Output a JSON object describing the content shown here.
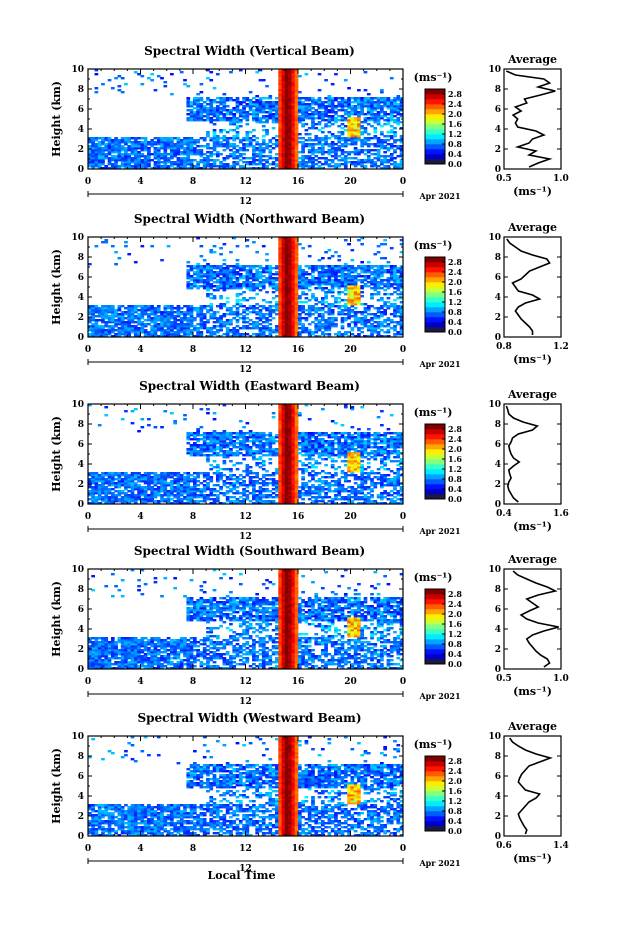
{
  "figure": {
    "date_label": "Apr 2021",
    "xaxis_title": "Local Time",
    "day_label": "12",
    "height_label": "Height (km)",
    "cbar_unit": "(ms⁻¹)",
    "avg_title": "Average",
    "avg_unit": "(ms⁻¹)"
  },
  "chart_data": [
    {
      "type": "heatmap",
      "title": "Spectral Width (Vertical Beam)",
      "ylabel": "Height (km)",
      "xlabel": "Local Time",
      "x_ticks": [
        "0",
        "4",
        "8",
        "12",
        "16",
        "20",
        "0"
      ],
      "y_ticks": [
        "0",
        "2",
        "4",
        "6",
        "8",
        "10"
      ],
      "xlim": [
        0,
        24
      ],
      "ylim": [
        0,
        10
      ],
      "colorbar": {
        "label": "(ms⁻¹)",
        "ticks": [
          "0.0",
          "0.4",
          "0.8",
          "1.2",
          "1.6",
          "2.0",
          "2.4",
          "2.8"
        ],
        "range": [
          0,
          3.0
        ]
      },
      "average": {
        "title": "Average",
        "xlabel": "(ms⁻¹)",
        "x_ticks": [
          "0.5",
          "1.0"
        ],
        "xlim": [
          0.5,
          1.0
        ],
        "heights": [
          0.2,
          0.6,
          1.0,
          1.4,
          1.8,
          2.2,
          2.6,
          3.0,
          3.4,
          3.8,
          4.2,
          4.6,
          5.0,
          5.4,
          5.8,
          6.2,
          6.6,
          7.0,
          7.4,
          7.8,
          8.2,
          8.6,
          9.0,
          9.4,
          9.8
        ],
        "values": [
          0.72,
          0.8,
          0.9,
          0.72,
          0.78,
          0.62,
          0.72,
          0.75,
          0.85,
          0.78,
          0.62,
          0.6,
          0.62,
          0.58,
          0.65,
          0.6,
          0.7,
          0.68,
          0.82,
          0.95,
          0.8,
          0.9,
          0.85,
          0.6,
          0.52
        ]
      }
    },
    {
      "type": "heatmap",
      "title": "Spectral Width (Northward Beam)",
      "ylabel": "Height (km)",
      "xlabel": "Local Time",
      "x_ticks": [
        "0",
        "4",
        "8",
        "12",
        "16",
        "20",
        "0"
      ],
      "y_ticks": [
        "0",
        "2",
        "4",
        "6",
        "8",
        "10"
      ],
      "xlim": [
        0,
        24
      ],
      "ylim": [
        0,
        10
      ],
      "colorbar": {
        "label": "(ms⁻¹)",
        "ticks": [
          "0.0",
          "0.4",
          "0.8",
          "1.2",
          "1.6",
          "2.0",
          "2.4",
          "2.8"
        ],
        "range": [
          0,
          3.0
        ]
      },
      "average": {
        "title": "Average",
        "xlabel": "(ms⁻¹)",
        "x_ticks": [
          "0.8",
          "1.2"
        ],
        "xlim": [
          0.8,
          1.2
        ],
        "heights": [
          0.2,
          0.6,
          1.0,
          1.4,
          1.8,
          2.2,
          2.6,
          3.0,
          3.4,
          3.8,
          4.2,
          4.6,
          5.0,
          5.4,
          5.8,
          6.2,
          6.6,
          7.0,
          7.4,
          7.8,
          8.2,
          8.6,
          9.0,
          9.4,
          9.8
        ],
        "values": [
          1.0,
          1.0,
          0.98,
          0.95,
          0.92,
          0.9,
          0.88,
          0.9,
          0.95,
          1.05,
          1.0,
          0.9,
          0.88,
          0.86,
          0.92,
          0.95,
          0.98,
          1.05,
          1.12,
          1.1,
          1.0,
          0.92,
          0.88,
          0.84,
          0.82
        ]
      }
    },
    {
      "type": "heatmap",
      "title": "Spectral Width (Eastward Beam)",
      "ylabel": "Height (km)",
      "xlabel": "Local Time",
      "x_ticks": [
        "0",
        "4",
        "8",
        "12",
        "16",
        "20",
        "0"
      ],
      "y_ticks": [
        "0",
        "2",
        "4",
        "6",
        "8",
        "10"
      ],
      "xlim": [
        0,
        24
      ],
      "ylim": [
        0,
        10
      ],
      "colorbar": {
        "label": "(ms⁻¹)",
        "ticks": [
          "0.0",
          "0.4",
          "0.8",
          "1.2",
          "1.6",
          "2.0",
          "2.4",
          "2.8"
        ],
        "range": [
          0,
          3.0
        ]
      },
      "average": {
        "title": "Average",
        "xlabel": "(ms⁻¹)",
        "x_ticks": [
          "0.4",
          "1.6"
        ],
        "xlim": [
          0.4,
          1.6
        ],
        "heights": [
          0.2,
          0.6,
          1.0,
          1.4,
          1.8,
          2.2,
          2.6,
          3.0,
          3.4,
          3.8,
          4.2,
          4.6,
          5.0,
          5.4,
          5.8,
          6.2,
          6.6,
          7.0,
          7.4,
          7.8,
          8.2,
          8.6,
          9.0,
          9.4,
          9.8
        ],
        "values": [
          0.7,
          0.6,
          0.55,
          0.5,
          0.48,
          0.5,
          0.55,
          0.52,
          0.5,
          0.6,
          0.72,
          0.6,
          0.55,
          0.52,
          0.5,
          0.55,
          0.58,
          0.7,
          1.0,
          1.1,
          0.8,
          0.6,
          0.5,
          0.48,
          0.45
        ]
      }
    },
    {
      "type": "heatmap",
      "title": "Spectral Width (Southward Beam)",
      "ylabel": "Height (km)",
      "xlabel": "Local Time",
      "x_ticks": [
        "0",
        "4",
        "8",
        "12",
        "16",
        "20",
        "0"
      ],
      "y_ticks": [
        "0",
        "2",
        "4",
        "6",
        "8",
        "10"
      ],
      "xlim": [
        0,
        24
      ],
      "ylim": [
        0,
        10
      ],
      "colorbar": {
        "label": "(ms⁻¹)",
        "ticks": [
          "0.0",
          "0.4",
          "0.8",
          "1.2",
          "1.6",
          "2.0",
          "2.4",
          "2.8"
        ],
        "range": [
          0,
          3.0
        ]
      },
      "average": {
        "title": "Average",
        "xlabel": "(ms⁻¹)",
        "x_ticks": [
          "0.5",
          "1.0"
        ],
        "xlim": [
          0.5,
          1.0
        ],
        "heights": [
          0.2,
          0.6,
          1.0,
          1.4,
          1.8,
          2.2,
          2.6,
          3.0,
          3.4,
          3.8,
          4.2,
          4.6,
          5.0,
          5.4,
          5.8,
          6.2,
          6.6,
          7.0,
          7.4,
          7.8,
          8.2,
          8.6,
          9.0,
          9.4,
          9.8
        ],
        "values": [
          0.85,
          0.9,
          0.88,
          0.82,
          0.78,
          0.75,
          0.72,
          0.7,
          0.75,
          0.85,
          0.98,
          0.8,
          0.7,
          0.65,
          0.72,
          0.8,
          0.75,
          0.7,
          0.8,
          0.95,
          0.88,
          0.78,
          0.7,
          0.62,
          0.58
        ]
      }
    },
    {
      "type": "heatmap",
      "title": "Spectral Width (Westward Beam)",
      "ylabel": "Height (km)",
      "xlabel": "Local Time",
      "x_ticks": [
        "0",
        "4",
        "8",
        "12",
        "16",
        "20",
        "0"
      ],
      "y_ticks": [
        "0",
        "2",
        "4",
        "6",
        "8",
        "10"
      ],
      "xlim": [
        0,
        24
      ],
      "ylim": [
        0,
        10
      ],
      "colorbar": {
        "label": "(ms⁻¹)",
        "ticks": [
          "0.0",
          "0.4",
          "0.8",
          "1.2",
          "1.6",
          "2.0",
          "2.4",
          "2.8"
        ],
        "range": [
          0,
          3.0
        ]
      },
      "average": {
        "title": "Average",
        "xlabel": "(ms⁻¹)",
        "x_ticks": [
          "0.6",
          "1.4"
        ],
        "xlim": [
          0.6,
          1.4
        ],
        "heights": [
          0.2,
          0.6,
          1.0,
          1.4,
          1.8,
          2.2,
          2.6,
          3.0,
          3.4,
          3.8,
          4.2,
          4.6,
          5.0,
          5.4,
          5.8,
          6.2,
          6.6,
          7.0,
          7.4,
          7.8,
          8.2,
          8.6,
          9.0,
          9.4,
          9.8
        ],
        "values": [
          0.9,
          0.92,
          0.88,
          0.85,
          0.82,
          0.8,
          0.85,
          0.9,
          0.95,
          1.05,
          1.1,
          0.9,
          0.85,
          0.8,
          0.82,
          0.85,
          0.9,
          0.95,
          1.1,
          1.25,
          1.05,
          0.9,
          0.8,
          0.72,
          0.68
        ]
      }
    }
  ]
}
